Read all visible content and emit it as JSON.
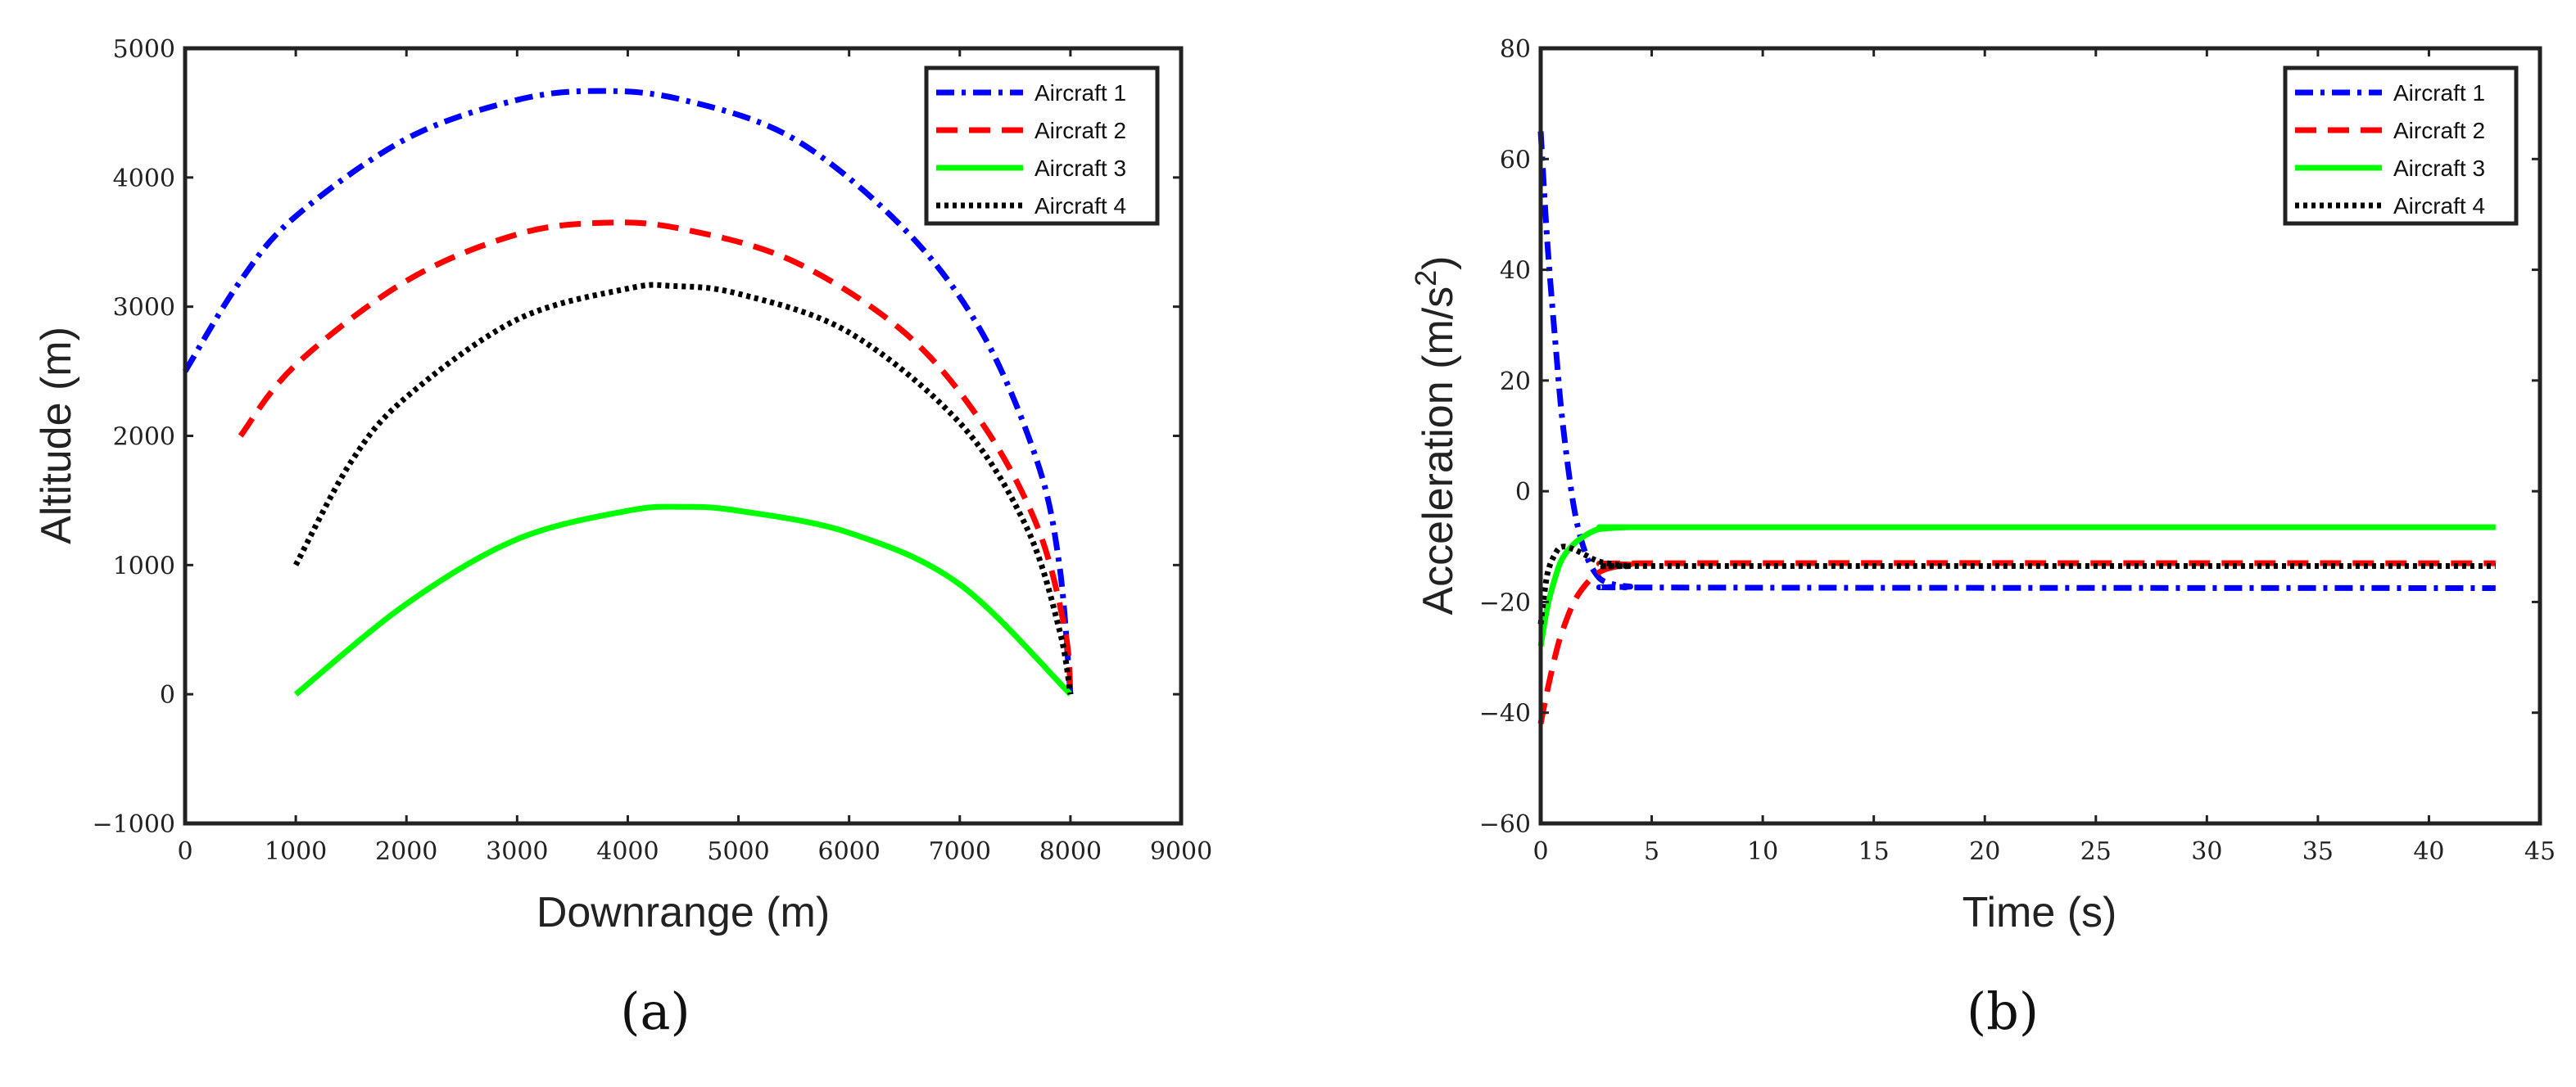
{
  "colors": {
    "aircraft1": "#0000ff",
    "aircraft2": "#ff0000",
    "aircraft3": "#00ff00",
    "aircraft4": "#000000"
  },
  "chart_data": [
    {
      "panel": "(a)",
      "type": "line",
      "xlabel": "Downrange (m)",
      "ylabel": "Altitude (m)",
      "xlim": [
        0,
        9000
      ],
      "ylim": [
        -1000,
        5000
      ],
      "xticks": [
        "0",
        "1000",
        "2000",
        "3000",
        "4000",
        "5000",
        "6000",
        "7000",
        "8000",
        "9000"
      ],
      "yticks": [
        "−1000",
        "0",
        "1000",
        "2000",
        "3000",
        "4000",
        "5000"
      ],
      "legend_position": "top-right",
      "series": [
        {
          "name": "Aircraft 1",
          "color": "#0000ff",
          "style": "dashdot",
          "x": [
            0,
            500,
            1000,
            2000,
            3000,
            3750,
            4500,
            5500,
            6500,
            7200,
            7700,
            7900,
            8000
          ],
          "y": [
            2500,
            3200,
            3700,
            4300,
            4600,
            4670,
            4600,
            4300,
            3600,
            2800,
            1800,
            1000,
            0
          ]
        },
        {
          "name": "Aircraft 2",
          "color": "#ff0000",
          "style": "dashed",
          "x": [
            500,
            1000,
            2000,
            3000,
            3800,
            4500,
            5500,
            6500,
            7200,
            7700,
            7950,
            8000
          ],
          "y": [
            2000,
            2550,
            3200,
            3560,
            3650,
            3600,
            3350,
            2800,
            2100,
            1300,
            500,
            0
          ]
        },
        {
          "name": "Aircraft 3",
          "color": "#00ff00",
          "style": "solid",
          "x": [
            1000,
            2000,
            3000,
            4000,
            4500,
            5000,
            6000,
            7000,
            8000
          ],
          "y": [
            0,
            700,
            1200,
            1420,
            1450,
            1420,
            1250,
            850,
            0
          ]
        },
        {
          "name": "Aircraft 4",
          "color": "#000000",
          "style": "dotted",
          "x": [
            1000,
            1500,
            2000,
            3000,
            4000,
            4400,
            5000,
            6000,
            7000,
            7600,
            7900,
            8000
          ],
          "y": [
            1000,
            1800,
            2300,
            2900,
            3140,
            3160,
            3100,
            2800,
            2100,
            1300,
            500,
            0
          ]
        }
      ]
    },
    {
      "panel": "(b)",
      "type": "line",
      "xlabel": "Time (s)",
      "ylabel": "Acceleration (m/s",
      "ylabel_exponent": "2",
      "ylabel_close": ")",
      "xlim": [
        0,
        45
      ],
      "ylim": [
        -60,
        80
      ],
      "xticks": [
        "0",
        "5",
        "10",
        "15",
        "20",
        "25",
        "30",
        "35",
        "40",
        "45"
      ],
      "yticks": [
        "−60",
        "−40",
        "−20",
        "0",
        "20",
        "40",
        "60",
        "80"
      ],
      "legend_position": "top-right",
      "series": [
        {
          "name": "Aircraft 1",
          "color": "#0000ff",
          "style": "dashdot",
          "x": [
            0,
            0.3,
            0.7,
            1.0,
            1.5,
            2.0,
            2.5,
            3.0,
            4.0,
            6.0,
            43
          ],
          "y": [
            65,
            45,
            25,
            12,
            -3,
            -11,
            -15,
            -16.5,
            -17.2,
            -17.4,
            -17.5
          ]
        },
        {
          "name": "Aircraft 2",
          "color": "#ff0000",
          "style": "dashed",
          "x": [
            0,
            0.3,
            0.7,
            1.0,
            1.5,
            2.0,
            2.5,
            3.0,
            4.0,
            6.0,
            43
          ],
          "y": [
            -42,
            -36,
            -29,
            -25,
            -20,
            -17,
            -15,
            -14,
            -13.3,
            -13,
            -13
          ]
        },
        {
          "name": "Aircraft 3",
          "color": "#00ff00",
          "style": "solid",
          "x": [
            0,
            0.3,
            0.7,
            1.0,
            1.5,
            2.0,
            2.5,
            3.0,
            4.0,
            6.0,
            43
          ],
          "y": [
            -28,
            -21,
            -15,
            -12,
            -9.5,
            -8,
            -7,
            -6.7,
            -6.5,
            -6.5,
            -6.5
          ]
        },
        {
          "name": "Aircraft 4",
          "color": "#000000",
          "style": "dotted",
          "x": [
            0,
            0.3,
            0.7,
            1.0,
            1.5,
            2.0,
            2.5,
            3.0,
            4.0,
            6.0,
            43
          ],
          "y": [
            -24,
            -15,
            -11,
            -10,
            -10.5,
            -11.5,
            -12.5,
            -13,
            -13.5,
            -13.5,
            -13.5
          ]
        }
      ]
    }
  ]
}
